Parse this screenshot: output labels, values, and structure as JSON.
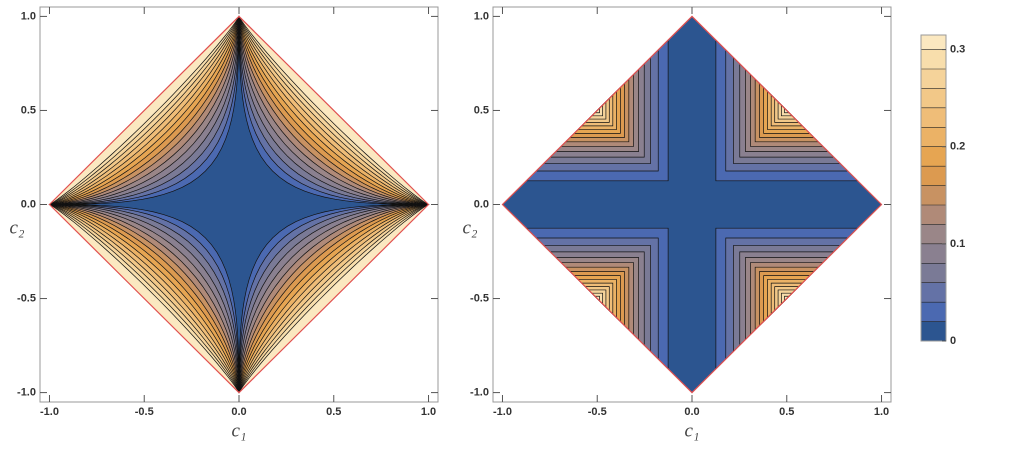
{
  "chart_data": [
    {
      "type": "contour",
      "xlabel": "c₁",
      "ylabel": "c₂",
      "xlim": [
        -1.05,
        1.05
      ],
      "ylim": [
        -1.05,
        1.05
      ],
      "xticks": [
        {
          "value": -1,
          "label": "-1.0"
        },
        {
          "value": -0.5,
          "label": "-0.5"
        },
        {
          "value": 0,
          "label": "0.0"
        },
        {
          "value": 0.5,
          "label": "0.5"
        },
        {
          "value": 1,
          "label": "1.0"
        }
      ],
      "yticks": [
        {
          "value": -1,
          "label": "-1.0"
        },
        {
          "value": -0.5,
          "label": "-0.5"
        },
        {
          "value": 0,
          "label": "0.0"
        },
        {
          "value": 0.5,
          "label": "0.5"
        },
        {
          "value": 1,
          "label": "1.0"
        }
      ]
    },
    {
      "type": "contour",
      "xlabel": "c₁",
      "ylabel": "c₂",
      "xlim": [
        -1.05,
        1.05
      ],
      "ylim": [
        -1.05,
        1.05
      ],
      "xticks": [
        {
          "value": -1,
          "label": "-1.0"
        },
        {
          "value": -0.5,
          "label": "-0.5"
        },
        {
          "value": 0,
          "label": "0.0"
        },
        {
          "value": 0.5,
          "label": "0.5"
        },
        {
          "value": 1,
          "label": "1.0"
        }
      ],
      "yticks": [
        {
          "value": -1,
          "label": "-1.0"
        },
        {
          "value": -0.5,
          "label": "-0.5"
        },
        {
          "value": 0,
          "label": "0.0"
        },
        {
          "value": 0.5,
          "label": "0.5"
        },
        {
          "value": 1,
          "label": "1.0"
        }
      ]
    }
  ],
  "colorbar": {
    "zlim": [
      0,
      0.315
    ],
    "ticks": [
      0,
      0.1,
      0.2,
      0.3
    ],
    "levels": [
      0,
      0.02,
      0.04,
      0.06,
      0.08,
      0.1,
      0.12,
      0.14,
      0.16,
      0.18,
      0.2,
      0.22,
      0.24,
      0.26,
      0.28,
      0.3
    ],
    "colors": [
      "#2c5590",
      "#4b69b1",
      "#6472a6",
      "#7a7a96",
      "#8a8090",
      "#9a8688",
      "#b08a78",
      "#c89262",
      "#dc9a50",
      "#e6a552",
      "#ebb266",
      "#efbd78",
      "#f2c888",
      "#f5d39a",
      "#f8deac",
      "#fbe8c0"
    ]
  }
}
